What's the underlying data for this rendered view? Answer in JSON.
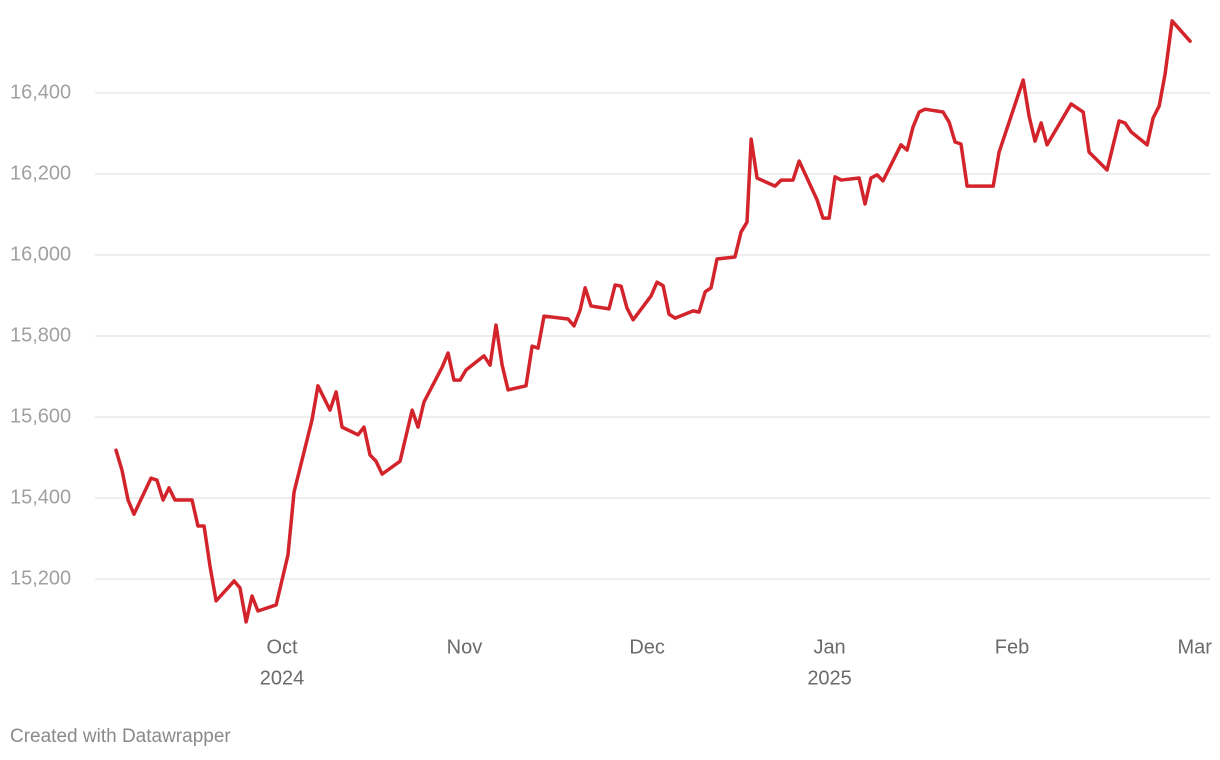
{
  "chart_data": {
    "type": "line",
    "source": "Created with Datawrapper",
    "color": "#d3242c",
    "grid": true,
    "xlim": [
      2024.6646,
      2025.1737
    ],
    "ylim": [
      15080,
      16600
    ],
    "xticks": [
      {
        "value": 2024.75,
        "label": [
          "Oct",
          "2024"
        ]
      },
      {
        "value": 2024.8333,
        "label": [
          "Nov"
        ]
      },
      {
        "value": 2024.9167,
        "label": [
          "Dec"
        ]
      },
      {
        "value": 2025.0,
        "label": [
          "Jan",
          "2025"
        ]
      },
      {
        "value": 2025.0833,
        "label": [
          "Feb"
        ]
      },
      {
        "value": 2025.1667,
        "label": [
          "Mar"
        ]
      }
    ],
    "yticks": [
      {
        "value": 15200,
        "label": "15,200"
      },
      {
        "value": 15400,
        "label": "15,400"
      },
      {
        "value": 15600,
        "label": "15,600"
      },
      {
        "value": 15800,
        "label": "15,800"
      },
      {
        "value": 16000,
        "label": "16,000"
      },
      {
        "value": 16200,
        "label": "16,200"
      },
      {
        "value": 16400,
        "label": "16,400"
      }
    ],
    "x": [
      2024.6742,
      2024.6769,
      2024.6797,
      2024.6824,
      2024.6902,
      2024.6929,
      2024.6957,
      2024.6984,
      2024.7011,
      2024.7089,
      2024.7116,
      2024.7144,
      2024.7171,
      2024.7199,
      2024.7281,
      2024.7308,
      2024.7336,
      2024.7363,
      2024.739,
      2024.7473,
      2024.7527,
      2024.7555,
      2024.7637,
      2024.7664,
      2024.7719,
      2024.7747,
      2024.7774,
      2024.7847,
      2024.7874,
      2024.7902,
      2024.7929,
      2024.7957,
      2024.8039,
      2024.8094,
      2024.8121,
      2024.8148,
      2024.8231,
      2024.8258,
      2024.8285,
      2024.8313,
      2024.834,
      2024.8422,
      2024.845,
      2024.8477,
      2024.8505,
      2024.8532,
      2024.8614,
      2024.8642,
      2024.8669,
      2024.8696,
      2024.8806,
      2024.8833,
      2024.8861,
      2024.8884,
      2024.8911,
      2024.8993,
      2024.9021,
      2024.9048,
      2024.9075,
      2024.9103,
      2024.9185,
      2024.9212,
      2024.924,
      2024.9267,
      2024.9295,
      2024.9377,
      2024.9404,
      2024.9432,
      2024.9459,
      2024.9486,
      2024.9568,
      2024.9596,
      2024.9623,
      2024.9642,
      2024.9669,
      2024.9751,
      2024.9779,
      2024.9833,
      2024.9861,
      2024.9943,
      2024.997,
      2024.9998,
      2025.0025,
      2025.0053,
      2025.0135,
      2025.0162,
      2025.0189,
      2025.0217,
      2025.0244,
      2025.0326,
      2025.0354,
      2025.0381,
      2025.0409,
      2025.0436,
      2025.0518,
      2025.0546,
      2025.0573,
      2025.06,
      2025.0628,
      2025.0747,
      2025.0774,
      2025.0884,
      2025.0911,
      2025.0938,
      2025.0966,
      2025.0993,
      2025.1103,
      2025.1158,
      2025.1185,
      2025.1267,
      2025.1322,
      2025.1349,
      2025.1377,
      2025.145,
      2025.1477,
      2025.1505,
      2025.1532,
      2025.1564,
      2025.1646
    ],
    "values": [
      15518,
      15469,
      15395,
      15360,
      15449,
      15444,
      15395,
      15425,
      15395,
      15395,
      15331,
      15331,
      15232,
      15146,
      15195,
      15178,
      15094,
      15158,
      15121,
      15136,
      15259,
      15415,
      15593,
      15677,
      15617,
      15662,
      15575,
      15556,
      15575,
      15506,
      15491,
      15459,
      15491,
      15617,
      15575,
      15637,
      15723,
      15758,
      15691,
      15691,
      15716,
      15751,
      15728,
      15827,
      15728,
      15667,
      15677,
      15775,
      15770,
      15849,
      15842,
      15825,
      15864,
      15919,
      15874,
      15867,
      15926,
      15923,
      15869,
      15840,
      15899,
      15933,
      15924,
      15854,
      15844,
      15862,
      15859,
      15909,
      15919,
      15990,
      15995,
      16057,
      16081,
      16286,
      16190,
      16170,
      16185,
      16185,
      16232,
      16136,
      16091,
      16091,
      16193,
      16185,
      16190,
      16126,
      16190,
      16198,
      16183,
      16272,
      16259,
      16316,
      16353,
      16360,
      16353,
      16328,
      16279,
      16274,
      16170,
      16170,
      16254,
      16432,
      16343,
      16281,
      16326,
      16272,
      16373,
      16353,
      16254,
      16210,
      16331,
      16326,
      16304,
      16272,
      16338,
      16368,
      16447,
      16578,
      16528
    ]
  }
}
